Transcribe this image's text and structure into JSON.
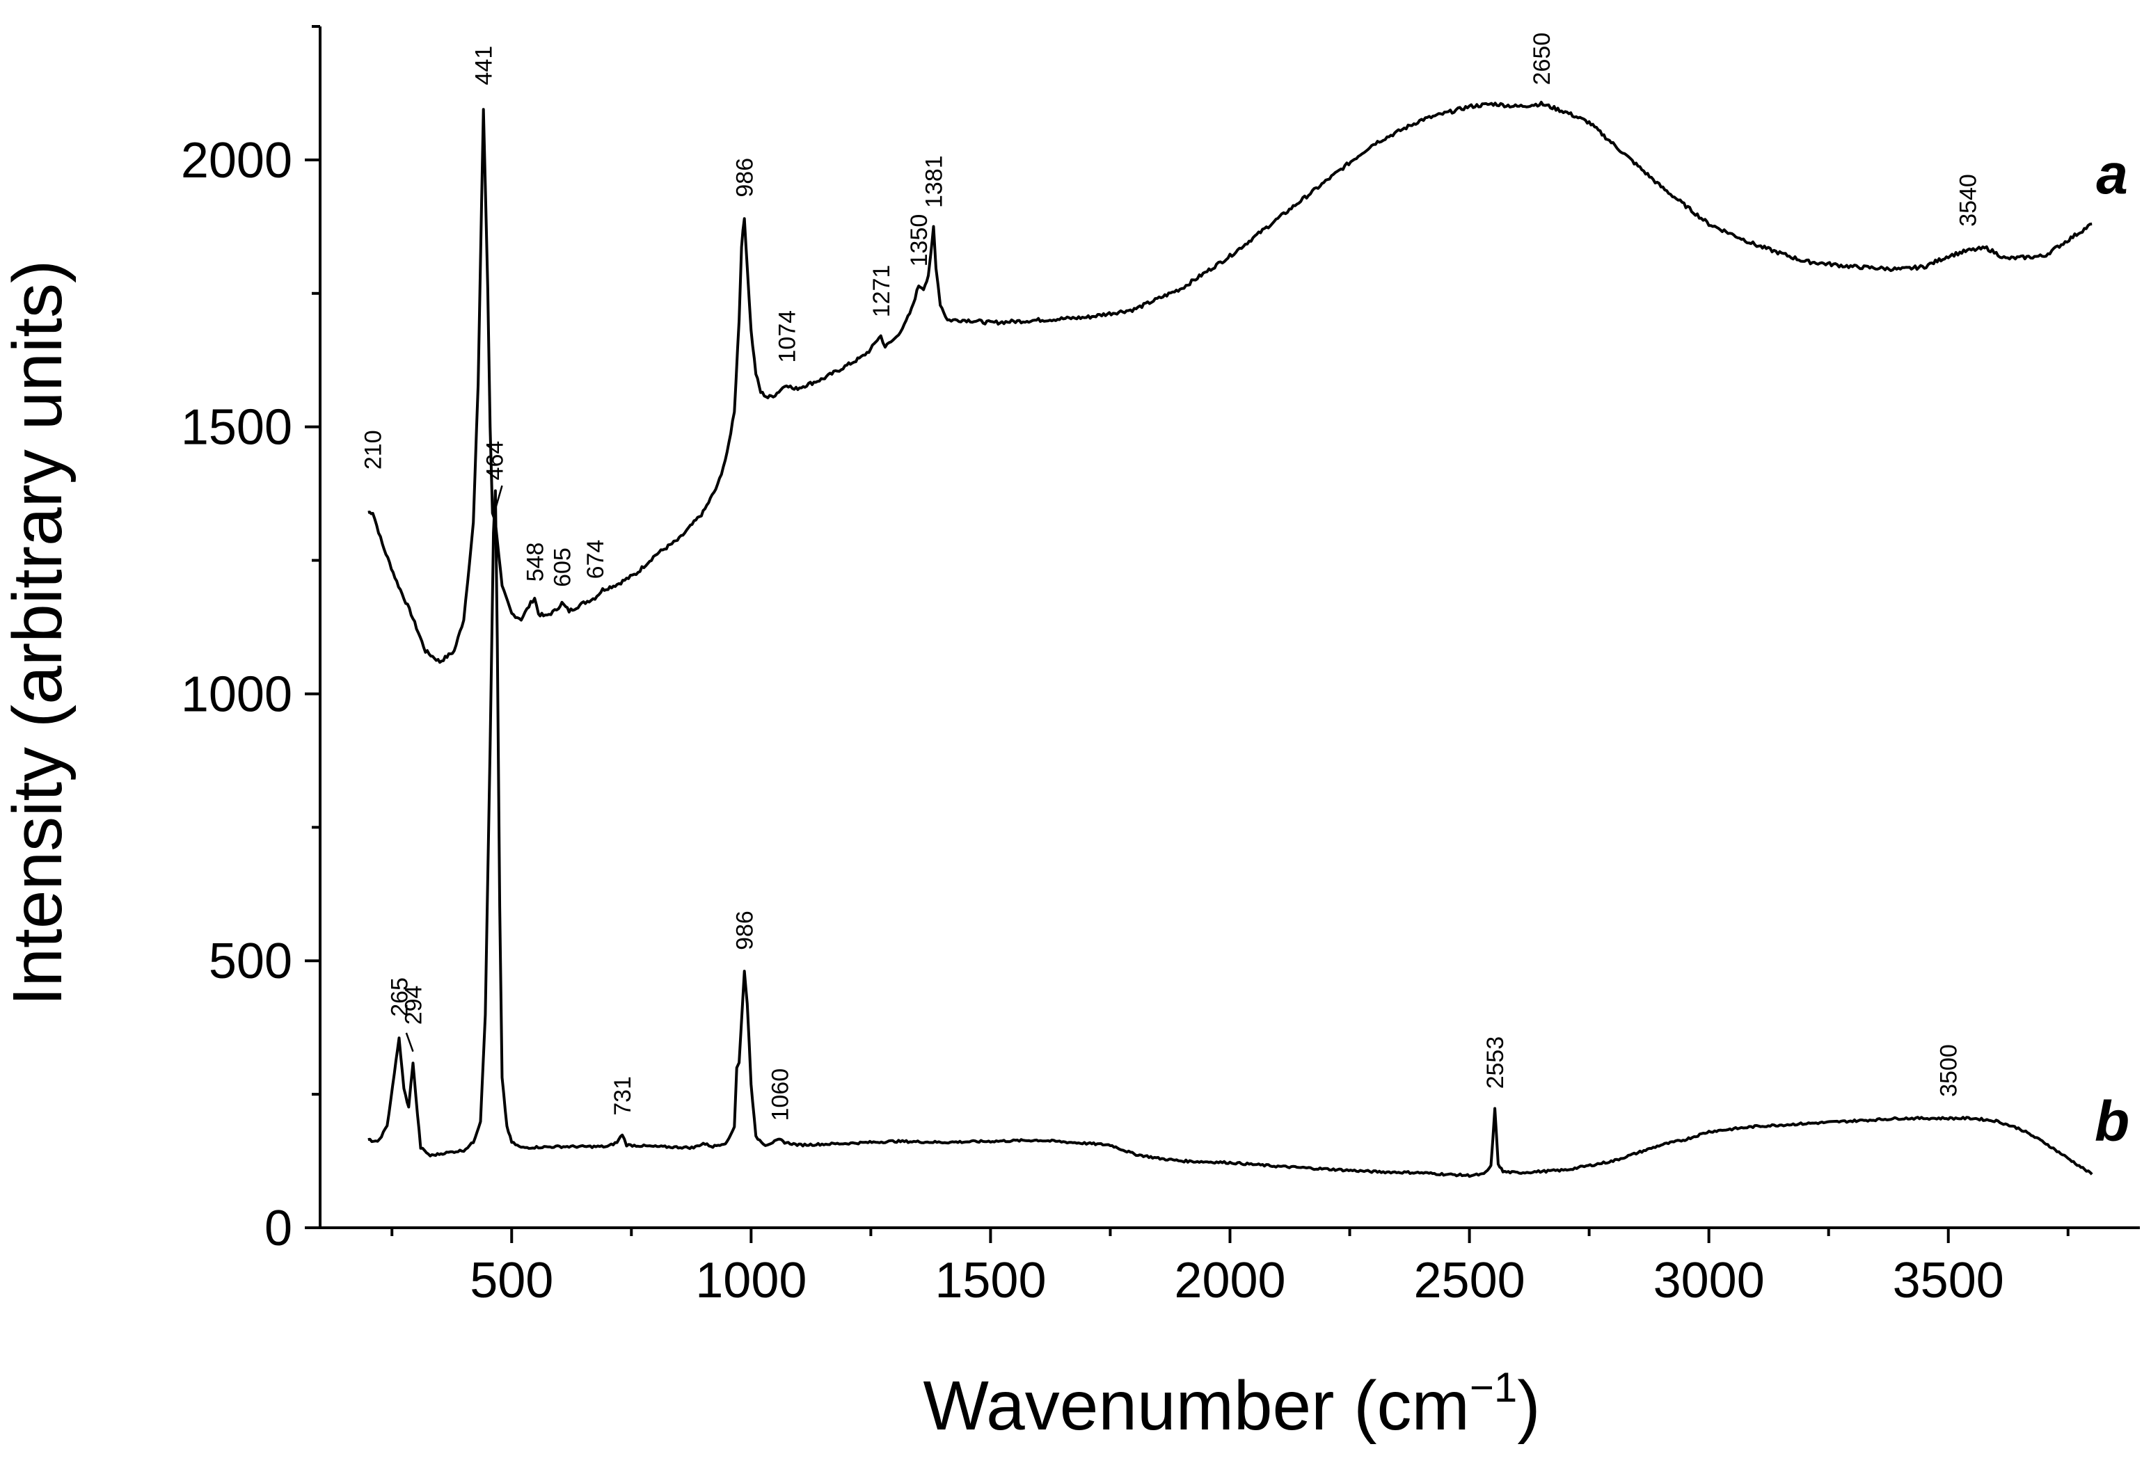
{
  "chart_data": {
    "type": "line",
    "xlabel": "Wavenumber (cm",
    "xlabel_sup": "−1",
    "xlabel_close": ")",
    "ylabel": "Intensity (arbitrary units)",
    "xlim": [
      100,
      3900
    ],
    "ylim": [
      0,
      2250
    ],
    "x_ticks": [
      500,
      1000,
      1500,
      2000,
      2500,
      3000,
      3500
    ],
    "x_tick_labels": [
      "500",
      "1000",
      "1500",
      "2000",
      "2500",
      "3000",
      "3500"
    ],
    "y_ticks": [
      0,
      500,
      1000,
      1500,
      2000
    ],
    "y_tick_labels": [
      "0",
      "500",
      "1000",
      "1500",
      "2000"
    ],
    "x_minor_step": 250,
    "y_minor_step": 250,
    "series": [
      {
        "name": "a",
        "x": [
          200,
          210,
          230,
          260,
          290,
          320,
          350,
          380,
          400,
          420,
          430,
          441,
          450,
          455,
          460,
          464,
          470,
          480,
          500,
          520,
          540,
          548,
          556,
          570,
          590,
          605,
          620,
          650,
          674,
          690,
          720,
          760,
          800,
          850,
          900,
          930,
          950,
          965,
          975,
          980,
          986,
          992,
          1000,
          1010,
          1020,
          1035,
          1050,
          1074,
          1090,
          1120,
          1150,
          1180,
          1200,
          1230,
          1250,
          1260,
          1271,
          1280,
          1300,
          1320,
          1335,
          1350,
          1360,
          1370,
          1375,
          1381,
          1386,
          1395,
          1410,
          1450,
          1500,
          1600,
          1700,
          1800,
          1900,
          2000,
          2100,
          2200,
          2300,
          2400,
          2500,
          2550,
          2600,
          2650,
          2700,
          2750,
          2800,
          2900,
          3000,
          3100,
          3200,
          3300,
          3400,
          3450,
          3500,
          3540,
          3580,
          3620,
          3700,
          3800
        ],
        "values": [
          1340,
          1340,
          1280,
          1210,
          1150,
          1080,
          1060,
          1080,
          1140,
          1320,
          1580,
          2095,
          1760,
          1500,
          1340,
          1330,
          1290,
          1200,
          1150,
          1140,
          1170,
          1180,
          1150,
          1145,
          1155,
          1170,
          1155,
          1170,
          1180,
          1195,
          1205,
          1225,
          1260,
          1290,
          1340,
          1390,
          1450,
          1530,
          1700,
          1840,
          1890,
          1800,
          1680,
          1600,
          1565,
          1555,
          1560,
          1580,
          1570,
          1580,
          1590,
          1605,
          1615,
          1630,
          1645,
          1660,
          1670,
          1650,
          1665,
          1690,
          1720,
          1765,
          1760,
          1780,
          1820,
          1875,
          1800,
          1730,
          1700,
          1700,
          1695,
          1700,
          1705,
          1720,
          1760,
          1820,
          1890,
          1960,
          2030,
          2075,
          2100,
          2105,
          2100,
          2105,
          2090,
          2070,
          2030,
          1950,
          1880,
          1840,
          1810,
          1800,
          1795,
          1800,
          1820,
          1830,
          1835,
          1815,
          1820,
          1880
        ]
      },
      {
        "name": "b",
        "x": [
          200,
          220,
          240,
          255,
          265,
          275,
          285,
          294,
          300,
          310,
          330,
          360,
          400,
          420,
          435,
          445,
          455,
          462,
          466,
          470,
          475,
          480,
          490,
          500,
          520,
          600,
          700,
          720,
          731,
          740,
          800,
          880,
          900,
          920,
          950,
          965,
          970,
          975,
          986,
          992,
          1000,
          1010,
          1030,
          1060,
          1070,
          1100,
          1200,
          1300,
          1400,
          1500,
          1600,
          1700,
          1750,
          1800,
          1850,
          1900,
          2000,
          2100,
          2200,
          2300,
          2400,
          2450,
          2500,
          2530,
          2545,
          2553,
          2560,
          2570,
          2600,
          2700,
          2800,
          2900,
          2950,
          3000,
          3100,
          3200,
          3300,
          3400,
          3500,
          3550,
          3600,
          3650,
          3700,
          3750,
          3800
        ],
        "values": [
          165,
          160,
          190,
          290,
          355,
          260,
          225,
          310,
          245,
          150,
          135,
          140,
          145,
          160,
          200,
          400,
          900,
          1300,
          1380,
          1100,
          600,
          280,
          190,
          160,
          150,
          152,
          152,
          160,
          175,
          155,
          152,
          150,
          158,
          152,
          160,
          190,
          300,
          310,
          480,
          420,
          270,
          170,
          155,
          165,
          160,
          155,
          158,
          162,
          160,
          162,
          164,
          158,
          155,
          138,
          130,
          125,
          122,
          115,
          110,
          105,
          103,
          100,
          98,
          100,
          115,
          222,
          120,
          105,
          103,
          108,
          125,
          155,
          165,
          180,
          190,
          195,
          200,
          205,
          205,
          205,
          200,
          185,
          160,
          130,
          100
        ]
      }
    ],
    "series_labels": [
      "a",
      "b"
    ],
    "annotations": [
      {
        "text": "210",
        "x": 210,
        "y": 1420
      },
      {
        "text": "441",
        "x": 441,
        "y": 2140
      },
      {
        "text": "464",
        "x": 464,
        "y": 1400
      },
      {
        "text": "548",
        "x": 548,
        "y": 1210
      },
      {
        "text": "605",
        "x": 605,
        "y": 1200
      },
      {
        "text": "674",
        "x": 674,
        "y": 1215
      },
      {
        "text": "986",
        "x": 986,
        "y": 1930
      },
      {
        "text": "1074",
        "x": 1074,
        "y": 1620
      },
      {
        "text": "1271",
        "x": 1271,
        "y": 1705
      },
      {
        "text": "1350",
        "x": 1350,
        "y": 1800
      },
      {
        "text": "1381",
        "x": 1381,
        "y": 1910
      },
      {
        "text": "2650",
        "x": 2650,
        "y": 2140
      },
      {
        "text": "3540",
        "x": 3540,
        "y": 1875
      },
      {
        "text": "265",
        "x": 265,
        "y": 395
      },
      {
        "text": "294",
        "x": 294,
        "y": 380
      },
      {
        "text": "731",
        "x": 731,
        "y": 210
      },
      {
        "text": "986",
        "x": 986,
        "y": 520
      },
      {
        "text": "1060",
        "x": 1060,
        "y": 200
      },
      {
        "text": "2553",
        "x": 2553,
        "y": 260
      },
      {
        "text": "3500",
        "x": 3500,
        "y": 245
      }
    ]
  }
}
